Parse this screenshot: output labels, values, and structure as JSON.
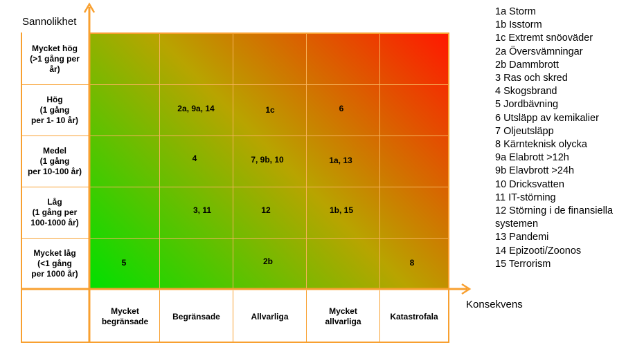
{
  "axes": {
    "y_title": "Sannolikhet",
    "x_title": "Konsekvens"
  },
  "rows": [
    "Mycket hög\n(>1 gång per\når)",
    "Hög\n(1 gång\nper 1- 10 år)",
    "Medel\n(1 gång\nper 10-100 år)",
    "Låg\n(1 gång per\n100-1000 år)",
    "Mycket låg\n(<1 gång\nper 1000 år)"
  ],
  "columns": [
    "Mycket\nbegränsade",
    "Begränsade",
    "Allvarliga",
    "Mycket\nallvarliga",
    "Katastrofala"
  ],
  "cells": {
    "r1c1": "2a, 9a, 14",
    "r1c2": "1c",
    "r1c3": "6",
    "r2c1": "4",
    "r2c2": "7, 9b, 10",
    "r2c3": "1a, 13",
    "r3c1": "3, 11",
    "r3c2": "12",
    "r3c3": "1b, 15",
    "r4c0": "5",
    "r4c2": "2b",
    "r4c4": "8"
  },
  "legend": [
    "1a Storm",
    "1b Isstorm",
    "1c Extremt snöoväder",
    "2a Översvämningar",
    "2b Dammbrott",
    "3 Ras och skred",
    "4 Skogsbrand",
    "5 Jordbävning",
    "6 Utsläpp av kemikalier",
    "7 Oljeutsläpp",
    "8 Kärnteknisk olycka",
    "9a Elabrott >12h",
    "9b Elavbrott >24h",
    "10 Dricksvatten",
    "11 IT-störning",
    "12 Störning i de finansiella systemen",
    "13 Pandemi",
    "14 Epizooti/Zoonos",
    "15 Terrorism"
  ],
  "colors": {
    "low": "#00e000",
    "mid": "#b8a400",
    "high": "#ff1800",
    "lines": "#f8a030"
  }
}
